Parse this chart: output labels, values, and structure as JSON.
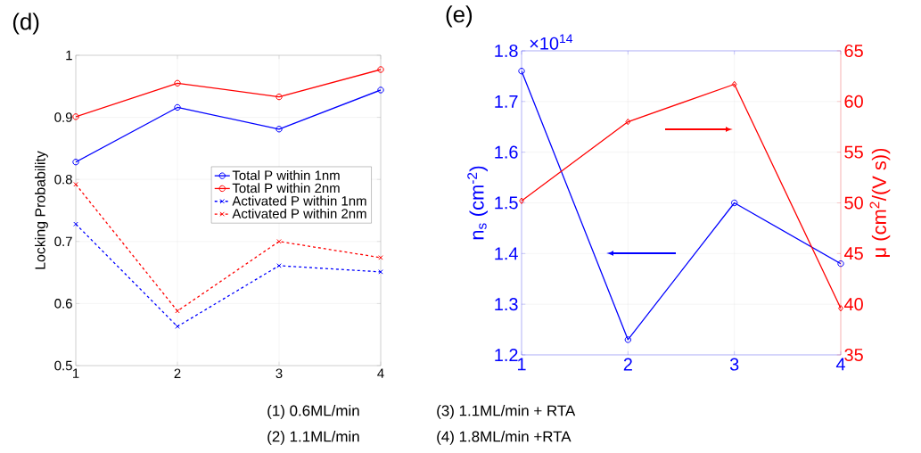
{
  "chart_data": [
    {
      "type": "line",
      "title": "(d)",
      "ylabel": "Locking Probability",
      "x": [
        1,
        2,
        3,
        4
      ],
      "xlim": [
        1,
        4
      ],
      "xticks": [
        1,
        2,
        3,
        4
      ],
      "ylim": [
        0.5,
        1
      ],
      "yticks": [
        0.5,
        0.6,
        0.7,
        0.8,
        0.9,
        1
      ],
      "grid": true,
      "legend": "right",
      "series": [
        {
          "name": "Total P within 1nm",
          "color": "#0000ff",
          "marker": "circle",
          "line_style": "solid",
          "values": [
            0.828,
            0.916,
            0.881,
            0.944
          ]
        },
        {
          "name": "Total P within 2nm",
          "color": "#ff0000",
          "marker": "circle",
          "line_style": "solid",
          "values": [
            0.901,
            0.955,
            0.933,
            0.977
          ]
        },
        {
          "name": "Activated P within 1nm",
          "color": "#0000ff",
          "marker": "cross",
          "line_style": "dashed",
          "values": [
            0.728,
            0.563,
            0.661,
            0.651
          ]
        },
        {
          "name": "Activated P within 2nm",
          "color": "#ff0000",
          "marker": "cross",
          "line_style": "dashed",
          "values": [
            0.792,
            0.588,
            0.7,
            0.674
          ]
        }
      ]
    },
    {
      "type": "line",
      "title": "(e)",
      "ylabel": "n$_{s}$ (cm$^{-2}$)",
      "y2label": "μ (cm$^{2}$/(V s))",
      "x": [
        1,
        2,
        3,
        4
      ],
      "xlim": [
        1,
        4
      ],
      "xticks": [
        1,
        2,
        3,
        4
      ],
      "ylim": [
        1.2,
        1.8
      ],
      "yticks": [
        1.2,
        1.3,
        1.4,
        1.5,
        1.6,
        1.7,
        1.8
      ],
      "y2lim": [
        35,
        65
      ],
      "y2ticks": [
        35,
        40,
        45,
        50,
        55,
        60,
        65
      ],
      "grid": true,
      "annotations": [
        "×10$^{14}$",
        "(1)  0.6ML/min",
        "(2)  1.1ML/min",
        "(3) 1.1ML/min + RTA",
        "(4) 1.8ML/min +RTA"
      ],
      "series": [
        {
          "color": "#0000ff",
          "marker": "circle",
          "line_style": "solid",
          "axis": "y",
          "values": [
            1.76,
            1.23,
            1.5,
            1.38
          ]
        },
        {
          "color": "#ff0000",
          "marker": "diamond",
          "line_style": "solid",
          "axis": "y2",
          "values": [
            50.2,
            58.0,
            61.7,
            39.6
          ]
        }
      ]
    }
  ]
}
